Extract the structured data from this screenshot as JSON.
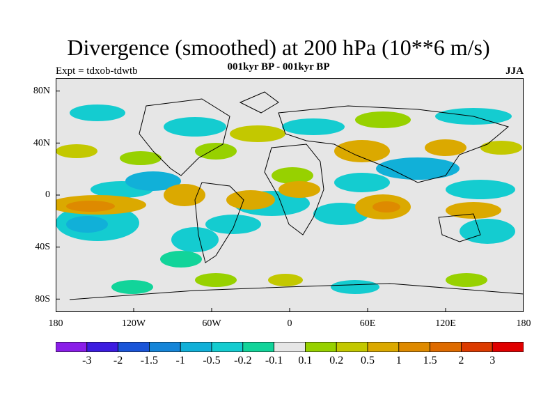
{
  "title": "Divergence (smoothed) at 200 hPa (10**6 m/s)",
  "subtitle": "001kyr BP - 001kyr BP",
  "left_label": "Expt = tdxob-tdwtb",
  "right_label": "JJA",
  "y_axis": {
    "ticks": [
      "80N",
      "40N",
      "0",
      "40S",
      "80S"
    ],
    "range": [
      -90,
      90
    ]
  },
  "x_axis": {
    "ticks": [
      "180",
      "120W",
      "60W",
      "0",
      "60E",
      "120E",
      "180"
    ],
    "range": [
      -180,
      180
    ]
  },
  "colorbar": {
    "levels": [
      "-3",
      "-2",
      "-1.5",
      "-1",
      "-0.5",
      "-0.2",
      "-0.1",
      "0.1",
      "0.2",
      "0.5",
      "1",
      "1.5",
      "2",
      "3"
    ],
    "colors": [
      "#8a1ee8",
      "#3c1ce0",
      "#1a55d8",
      "#1585d8",
      "#11b0d8",
      "#14ccd0",
      "#12d49a",
      "#e6e6e6",
      "#97d100",
      "#c3c800",
      "#dba900",
      "#de8a00",
      "#de6b00",
      "#dc3b00",
      "#e00000"
    ]
  },
  "map": {
    "background": "#e6e6e6",
    "coastline_color": "#000000",
    "pattern": "alternating bands of positive (yellow-orange) and negative (cyan-green) 200 hPa divergence anomalies; strongest negative over tropical Pacific, strongest positive over eastern tropical Pacific and Indian Ocean"
  }
}
